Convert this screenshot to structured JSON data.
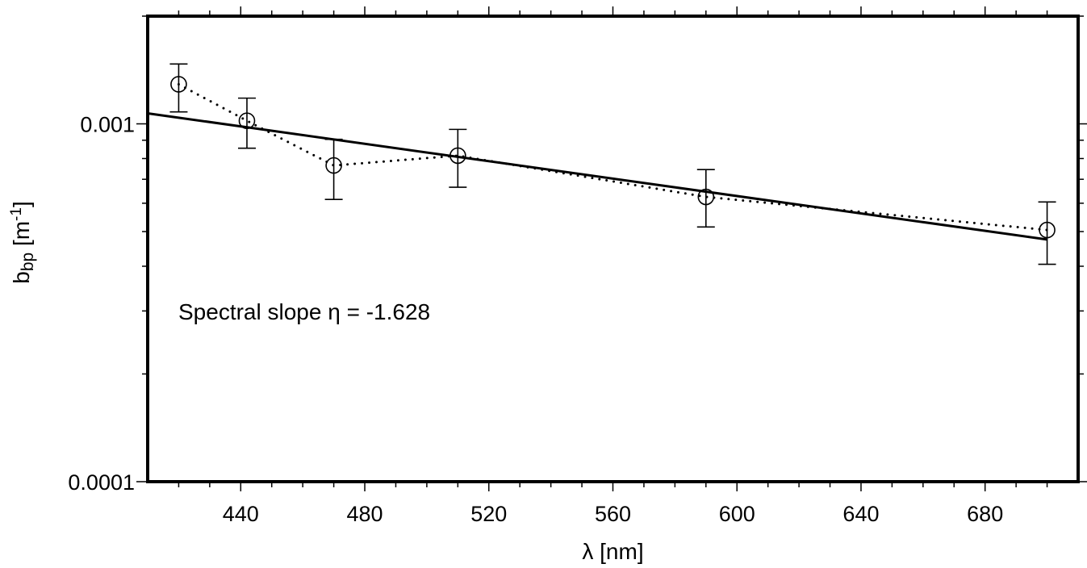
{
  "chart_data": {
    "type": "scatter",
    "title": "",
    "xlabel": "λ [nm]",
    "ylabel": {
      "base": "b",
      "subscript": "bp",
      "unit_open": " [m",
      "unit_sup": "-1",
      "unit_close": "]"
    },
    "xlim": [
      410,
      710
    ],
    "ylim": [
      0.0001,
      0.002
    ],
    "y_scale": "log",
    "grid": false,
    "x_ticks": [
      440,
      480,
      520,
      560,
      600,
      640,
      680
    ],
    "y_ticks": [
      {
        "value": 0.001,
        "label": "0.001"
      },
      {
        "value": 0.0001,
        "label": "0.0001"
      }
    ],
    "series": [
      {
        "style": "markers-dotted",
        "x": [
          420,
          442,
          470,
          510,
          590,
          700
        ],
        "y": [
          0.00129,
          0.00102,
          0.000765,
          0.000815,
          0.000625,
          0.000505
        ],
        "err_low": [
          0.00108,
          0.000855,
          0.000615,
          0.000665,
          0.000515,
          0.000405
        ],
        "err_high": [
          0.00147,
          0.00118,
          0.000905,
          0.000965,
          0.000745,
          0.000605
        ]
      },
      {
        "style": "fit-line",
        "x": [
          410,
          700
        ],
        "y": [
          0.00107,
          0.000475
        ]
      }
    ],
    "annotation": "Spectral slope η = -1.628"
  }
}
